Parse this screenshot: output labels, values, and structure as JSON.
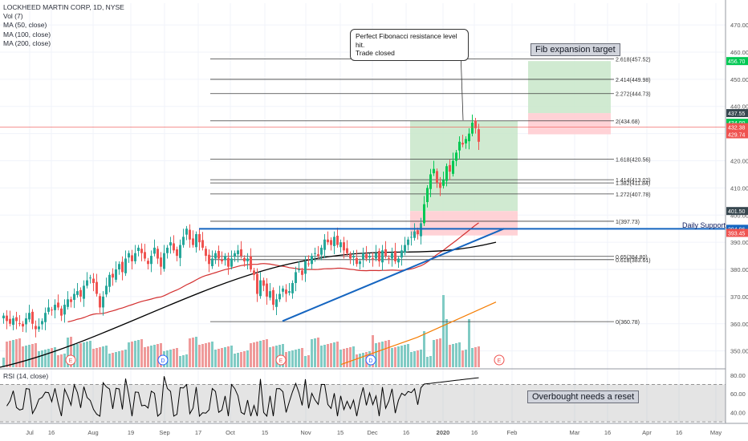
{
  "legend": {
    "title": "LOCKHEED MARTIN CORP, 1D, NYSE",
    "vol": "Vol (7)",
    "ma50": "MA (50, close)",
    "ma100": "MA (100, close)",
    "ma200": "MA (200, close)"
  },
  "rsi_label": "RSI (14, close)",
  "annotations": {
    "callout_line1": "Perfect Fibonacci resistance level hit.",
    "callout_line2": "Trade closed",
    "fib_target": "Fib expansion target",
    "overbought": "Overbought needs a reset",
    "daily_support": "Daily Support"
  },
  "colors": {
    "up": "#26a69a",
    "up_bright": "#00c853",
    "down": "#ef5350",
    "ma50": "#f57c00",
    "ma100": "#d32f2f",
    "ma200": "#000000",
    "trendline": "#1565c0",
    "support": "#1565c0",
    "profit_zone": "#c8e6c9",
    "loss_zone": "#ffcdd2"
  },
  "chart_data": {
    "type": "candlestick",
    "title": "LOCKHEED MARTIN CORP, 1D, NYSE",
    "price_axis": {
      "ylim": [
        344,
        478
      ],
      "ticks": [
        350,
        360,
        370,
        380,
        390,
        400,
        410,
        420,
        430,
        440,
        450,
        460,
        470
      ],
      "tick_labels": [
        "350.00",
        "360.00",
        "370.00",
        "380.00",
        "390.00",
        "400.00",
        "410.00",
        "420.00",
        "430.00",
        "440.00",
        "450.00",
        "460.00",
        "470.00"
      ]
    },
    "time_axis": {
      "labels": [
        "Jul",
        "16",
        "Aug",
        "19",
        "Sep",
        "17",
        "Oct",
        "15",
        "Nov",
        "15",
        "Dec",
        "16",
        "2020",
        "16",
        "Feb",
        "Mar",
        "16",
        "Apr",
        "16",
        "May"
      ],
      "bold": [
        "2020"
      ]
    },
    "price_tags": [
      {
        "text": "456.70",
        "value": 456.7,
        "color": "#00c853"
      },
      {
        "text": "437.55",
        "value": 437.55,
        "color": "#37474f"
      },
      {
        "text": "434.00",
        "value": 434.0,
        "color": "#00c853"
      },
      {
        "text": "432.38",
        "value": 432.38,
        "color": "#ef5350"
      },
      {
        "text": "429.74",
        "value": 429.74,
        "color": "#ef5350"
      },
      {
        "text": "401.50",
        "value": 401.5,
        "color": "#37474f"
      },
      {
        "text": "394.96",
        "value": 394.96,
        "color": "#1565c0"
      },
      {
        "text": "393.45",
        "value": 393.45,
        "color": "#ef5350"
      }
    ],
    "fib_levels": [
      {
        "label": "2.618(457.52)",
        "value": 457.52
      },
      {
        "label": "2.414(449.98)",
        "value": 449.98
      },
      {
        "label": "2.272(444.73)",
        "value": 444.73
      },
      {
        "label": "2(434.68)",
        "value": 434.68
      },
      {
        "label": "1.618(420.56)",
        "value": 420.56
      },
      {
        "label": "1.414(413.02)",
        "value": 413.02
      },
      {
        "label": "1.382(411.84)",
        "value": 411.84
      },
      {
        "label": "1.272(407.78)",
        "value": 407.78
      },
      {
        "label": "1(397.73)",
        "value": 397.73
      },
      {
        "label": "0.65(384.80)",
        "value": 384.8
      },
      {
        "label": "0.618(383.61)",
        "value": 383.61
      },
      {
        "label": "0(360.78)",
        "value": 360.78
      }
    ],
    "current_price_line": 432.38,
    "daily_support": 394.96,
    "rsi": {
      "ylim": [
        30,
        85
      ],
      "ticks": [
        40,
        60,
        80
      ],
      "tick_labels": [
        "40.00",
        "60.00",
        "80.00"
      ],
      "overbought": 70,
      "oversold": 30
    },
    "events": [
      "E",
      "D",
      "E",
      "D",
      "E"
    ],
    "closes": [
      363,
      361,
      360,
      362,
      361,
      360,
      359,
      362,
      364,
      360,
      358,
      359,
      361,
      364,
      366,
      365,
      367,
      366,
      363,
      367,
      369,
      368,
      371,
      372,
      370,
      374,
      376,
      377,
      375,
      371,
      366,
      370,
      374,
      378,
      377,
      380,
      382,
      379,
      384,
      386,
      383,
      386,
      388,
      386,
      384,
      382,
      385,
      388,
      384,
      381,
      386,
      388,
      390,
      387,
      385,
      389,
      392,
      395,
      391,
      389,
      393,
      390,
      388,
      385,
      382,
      384,
      386,
      384,
      383,
      385,
      381,
      384,
      386,
      387,
      385,
      383,
      384,
      380,
      378,
      371,
      376,
      374,
      370,
      372,
      367,
      369,
      371,
      373,
      371,
      372,
      375,
      379,
      380,
      378,
      383,
      382,
      385,
      386,
      385,
      388,
      391,
      390,
      389,
      392,
      389,
      390,
      387,
      386,
      384,
      385,
      382,
      383,
      386,
      384,
      385,
      384,
      386,
      383,
      387,
      385,
      384,
      386,
      383,
      384,
      387,
      389,
      391,
      392,
      394,
      393,
      397,
      404,
      410,
      415,
      417,
      412,
      410,
      413,
      418,
      416,
      420,
      423,
      427,
      426,
      428,
      430,
      434,
      432,
      427
    ]
  }
}
